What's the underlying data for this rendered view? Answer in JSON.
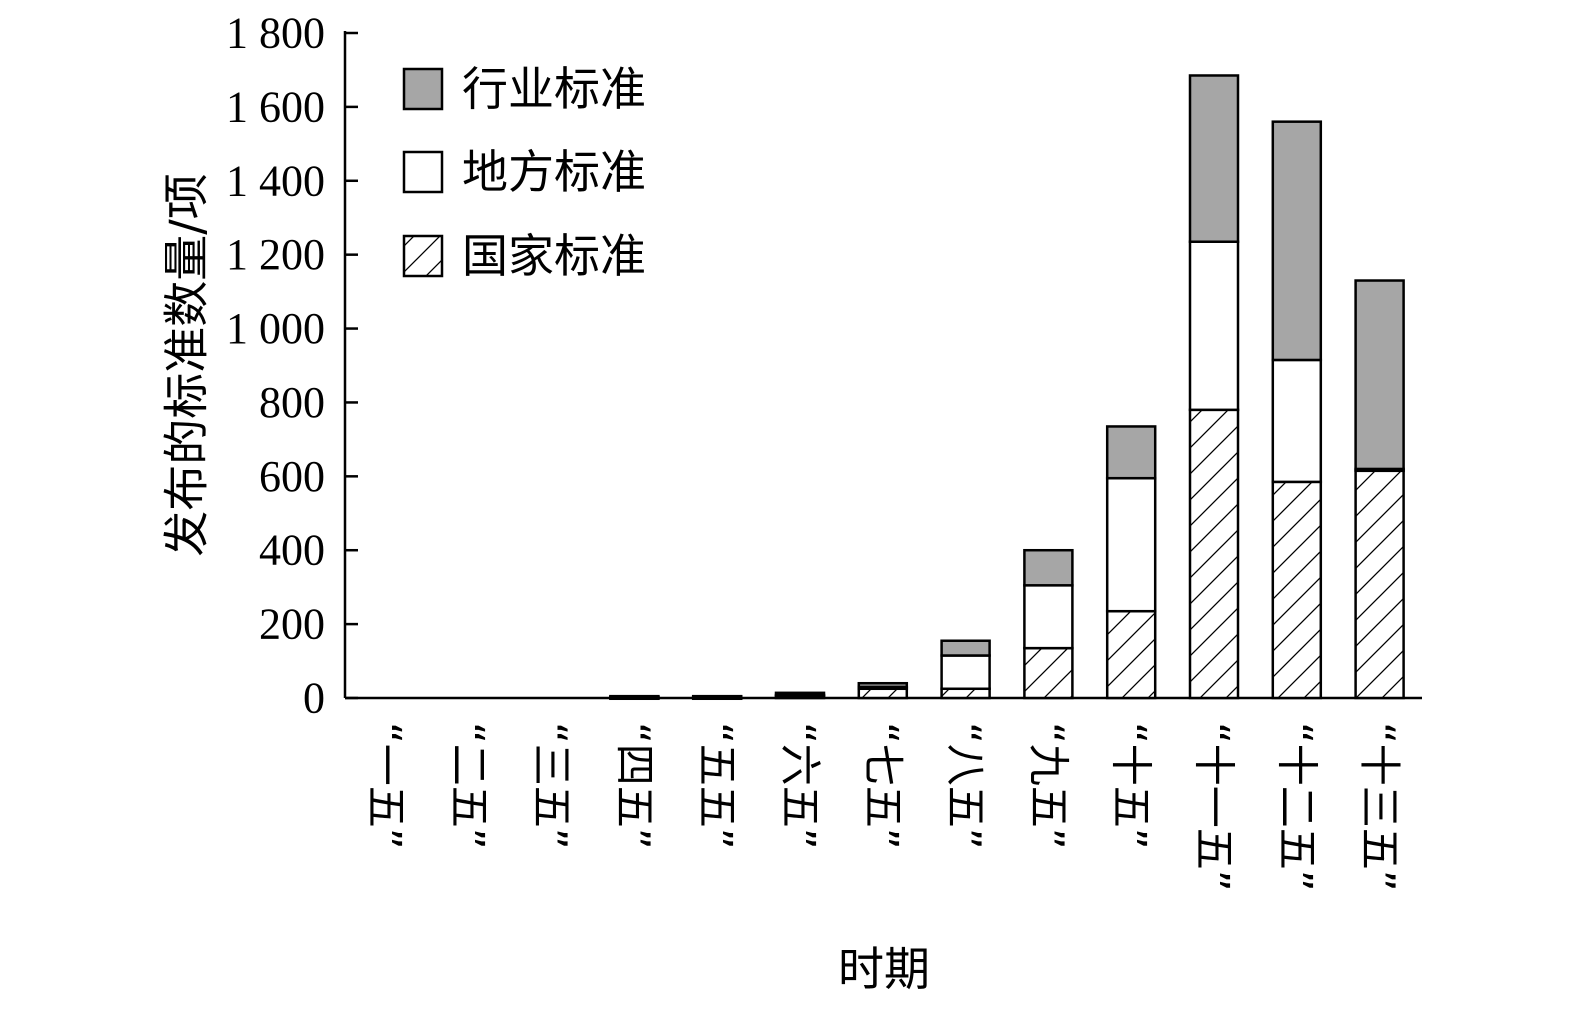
{
  "chart_data": {
    "type": "bar",
    "stacked": true,
    "title": "",
    "xlabel": "时期",
    "ylabel": "发布的标准数量/项",
    "ylim": [
      0,
      1800
    ],
    "yticks": [
      0,
      200,
      400,
      600,
      800,
      1000,
      1200,
      1400,
      1600,
      1800
    ],
    "ytick_labels": [
      "0",
      "200",
      "400",
      "600",
      "800",
      "1 000",
      "1 200",
      "1 400",
      "1 600",
      "1 800"
    ],
    "categories": [
      "“一五”",
      "“二五”",
      "“三五”",
      "“四五”",
      "“五五”",
      "“六五”",
      "“七五”",
      "“八五”",
      "“九五”",
      "“十五”",
      "“十一五”",
      "“十二五”",
      "“十三五”"
    ],
    "series": [
      {
        "name": "国家标准",
        "pattern": "hatch",
        "color": "#ffffff",
        "values": [
          0,
          0,
          0,
          2,
          2,
          5,
          25,
          25,
          135,
          235,
          780,
          585,
          615
        ]
      },
      {
        "name": "地方标准",
        "pattern": "solid",
        "color": "#ffffff",
        "values": [
          0,
          0,
          0,
          1,
          1,
          3,
          5,
          90,
          170,
          360,
          455,
          330,
          5
        ]
      },
      {
        "name": "行业标准",
        "pattern": "solid",
        "color": "#a6a6a6",
        "values": [
          0,
          0,
          0,
          2,
          2,
          6,
          10,
          40,
          95,
          140,
          450,
          645,
          510
        ]
      }
    ],
    "legend": {
      "position": "top-left",
      "order": [
        "行业标准",
        "地方标准",
        "国家标准"
      ]
    },
    "grid": false
  }
}
